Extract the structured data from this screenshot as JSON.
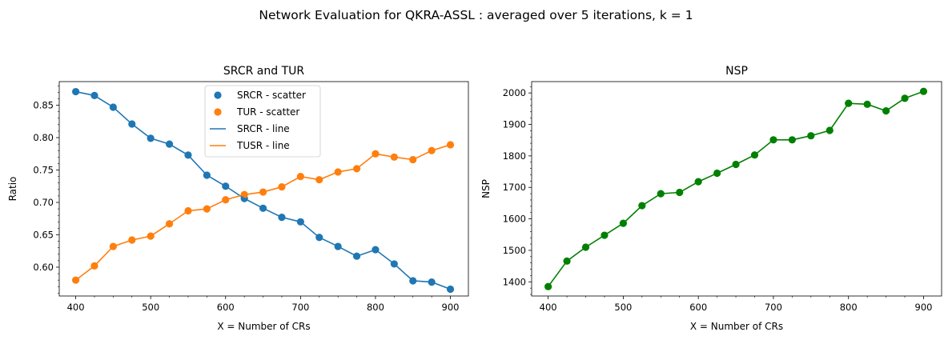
{
  "figure": {
    "suptitle": "Network Evaluation for QKRA-ASSL : averaged over 5 iterations, k = 1"
  },
  "chart_data": [
    {
      "type": "line",
      "title": "SRCR and TUR",
      "xlabel": "X = Number of CRs",
      "ylabel": "Ratio",
      "xlim": [
        378,
        924
      ],
      "ylim": [
        0.5555,
        0.8865
      ],
      "xticks": [
        400,
        500,
        600,
        700,
        800,
        900
      ],
      "yticks": [
        0.6,
        0.65,
        0.7,
        0.75,
        0.8,
        0.85
      ],
      "ytick_labels": [
        "0.60",
        "0.65",
        "0.70",
        "0.75",
        "0.80",
        "0.85"
      ],
      "x": [
        400,
        425,
        450,
        475,
        500,
        525,
        550,
        575,
        600,
        625,
        650,
        675,
        700,
        725,
        750,
        775,
        800,
        825,
        850,
        875,
        900
      ],
      "series": [
        {
          "name": "SRCR - scatter",
          "kind": "scatter",
          "color": "#1f77b4",
          "values": [
            0.871,
            0.865,
            0.847,
            0.821,
            0.799,
            0.79,
            0.773,
            0.742,
            0.725,
            0.706,
            0.691,
            0.677,
            0.67,
            0.646,
            0.632,
            0.617,
            0.627,
            0.605,
            0.579,
            0.577,
            0.566
          ]
        },
        {
          "name": "TUR - scatter",
          "kind": "scatter",
          "color": "#ff7f0e",
          "values": [
            0.58,
            0.602,
            0.632,
            0.642,
            0.648,
            0.667,
            0.687,
            0.69,
            0.704,
            0.712,
            0.716,
            0.724,
            0.74,
            0.735,
            0.747,
            0.752,
            0.775,
            0.77,
            0.766,
            0.78,
            0.789
          ]
        },
        {
          "name": "SRCR - line",
          "kind": "line",
          "color": "#1f77b4",
          "values": [
            0.871,
            0.865,
            0.847,
            0.821,
            0.799,
            0.79,
            0.773,
            0.742,
            0.725,
            0.706,
            0.691,
            0.677,
            0.67,
            0.646,
            0.632,
            0.617,
            0.627,
            0.605,
            0.579,
            0.577,
            0.566
          ]
        },
        {
          "name": "TUSR - line",
          "kind": "line",
          "color": "#ff7f0e",
          "values": [
            0.58,
            0.602,
            0.632,
            0.642,
            0.648,
            0.667,
            0.687,
            0.69,
            0.704,
            0.712,
            0.716,
            0.724,
            0.74,
            0.735,
            0.747,
            0.752,
            0.775,
            0.77,
            0.766,
            0.78,
            0.789
          ]
        }
      ],
      "legend": "upper center",
      "grid": false
    },
    {
      "type": "line",
      "title": "NSP",
      "xlabel": "X = Number of CRs",
      "ylabel": "NSP",
      "xlim": [
        378,
        924
      ],
      "ylim": [
        1355,
        2036
      ],
      "xticks": [
        400,
        500,
        600,
        700,
        800,
        900
      ],
      "yticks": [
        1400,
        1500,
        1600,
        1700,
        1800,
        1900,
        2000
      ],
      "ytick_labels": [
        "1400",
        "1500",
        "1600",
        "1700",
        "1800",
        "1900",
        "2000"
      ],
      "x": [
        400,
        425,
        450,
        475,
        500,
        525,
        550,
        575,
        600,
        625,
        650,
        675,
        700,
        725,
        750,
        775,
        800,
        825,
        850,
        875,
        900
      ],
      "series": [
        {
          "kind": "line+marker",
          "color": "#008000",
          "values": [
            1385,
            1466,
            1510,
            1548,
            1586,
            1642,
            1680,
            1684,
            1718,
            1745,
            1773,
            1803,
            1851,
            1851,
            1864,
            1881,
            1967,
            1964,
            1943,
            1983,
            2005
          ]
        }
      ],
      "grid": false
    }
  ]
}
